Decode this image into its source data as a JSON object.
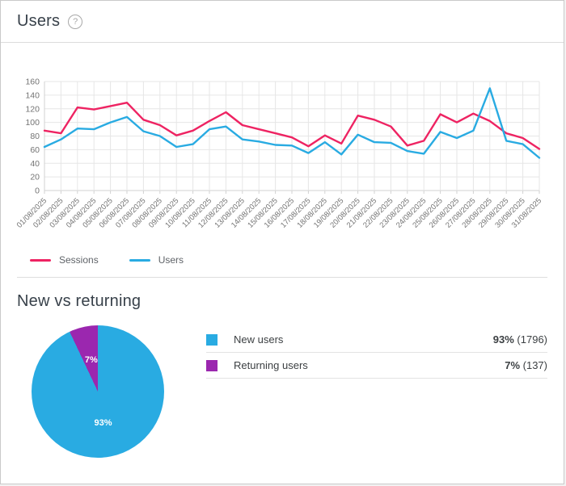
{
  "header": {
    "title": "Users",
    "help_icon": "question-mark"
  },
  "colors": {
    "sessions_line": "#ee2362",
    "users_line": "#29abe2",
    "new_users": "#29abe2",
    "returning_users": "#9b27af",
    "grid": "#e6e6e6",
    "axis": "#d2d2d2",
    "axis_text": "#737373"
  },
  "sections": {
    "new_vs_returning_title": "New vs returning"
  },
  "chart_data": [
    {
      "type": "line",
      "title": "Users",
      "x": [
        "01/08/2025",
        "02/08/2025",
        "03/08/2025",
        "04/08/2025",
        "05/08/2025",
        "06/08/2025",
        "07/08/2025",
        "08/08/2025",
        "09/08/2025",
        "10/08/2025",
        "11/08/2025",
        "12/08/2025",
        "13/08/2025",
        "14/08/2025",
        "15/08/2025",
        "16/08/2025",
        "17/08/2025",
        "18/08/2025",
        "19/08/2025",
        "20/08/2025",
        "21/08/2025",
        "22/08/2025",
        "23/08/2025",
        "24/08/2025",
        "25/08/2025",
        "26/08/2025",
        "27/08/2025",
        "28/08/2025",
        "29/08/2025",
        "30/08/2025",
        "31/08/2025"
      ],
      "series": [
        {
          "name": "Sessions",
          "color": "#ee2362",
          "values": [
            88,
            84,
            122,
            119,
            124,
            129,
            104,
            96,
            81,
            88,
            102,
            115,
            96,
            90,
            84,
            78,
            65,
            81,
            69,
            110,
            104,
            94,
            66,
            73,
            112,
            100,
            113,
            102,
            84,
            77,
            61
          ]
        },
        {
          "name": "Users",
          "color": "#29abe2",
          "values": [
            64,
            75,
            91,
            90,
            100,
            108,
            87,
            80,
            64,
            68,
            90,
            94,
            75,
            72,
            67,
            66,
            55,
            71,
            53,
            82,
            71,
            70,
            58,
            54,
            86,
            77,
            88,
            150,
            73,
            68,
            48
          ]
        }
      ],
      "ylim": [
        0,
        160
      ],
      "ytick_step": 20,
      "grid": true,
      "legend_position": "bottom-left"
    },
    {
      "type": "pie",
      "title": "New vs returning",
      "slices": [
        {
          "label": "New users",
          "percent": 93,
          "percent_label": "93%",
          "count_label": "(1796)",
          "color": "#29abe2"
        },
        {
          "label": "Returning users",
          "percent": 7,
          "percent_label": "7%",
          "count_label": "(137)",
          "color": "#9b27af"
        }
      ]
    }
  ]
}
